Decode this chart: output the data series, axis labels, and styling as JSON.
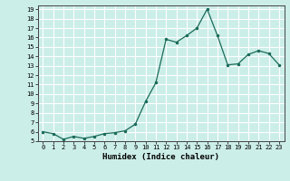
{
  "x": [
    0,
    1,
    2,
    3,
    4,
    5,
    6,
    7,
    8,
    9,
    10,
    11,
    12,
    13,
    14,
    15,
    16,
    17,
    18,
    19,
    20,
    21,
    22,
    23
  ],
  "y": [
    6,
    5.8,
    5.2,
    5.5,
    5.3,
    5.5,
    5.8,
    5.9,
    6.1,
    6.8,
    9.2,
    11.2,
    15.8,
    15.5,
    16.2,
    17.0,
    19.0,
    16.2,
    13.1,
    13.2,
    14.2,
    14.6,
    14.3,
    13.1
  ],
  "xlabel": "Humidex (Indice chaleur)",
  "xlim": [
    -0.5,
    23.5
  ],
  "ylim": [
    5,
    19.4
  ],
  "yticks": [
    5,
    6,
    7,
    8,
    9,
    10,
    11,
    12,
    13,
    14,
    15,
    16,
    17,
    18,
    19
  ],
  "xticks": [
    0,
    1,
    2,
    3,
    4,
    5,
    6,
    7,
    8,
    9,
    10,
    11,
    12,
    13,
    14,
    15,
    16,
    17,
    18,
    19,
    20,
    21,
    22,
    23
  ],
  "line_color": "#1a6b5a",
  "marker_color": "#1a6b5a",
  "bg_color": "#cceee8",
  "grid_color": "#ffffff",
  "fig_bg": "#cceee8"
}
